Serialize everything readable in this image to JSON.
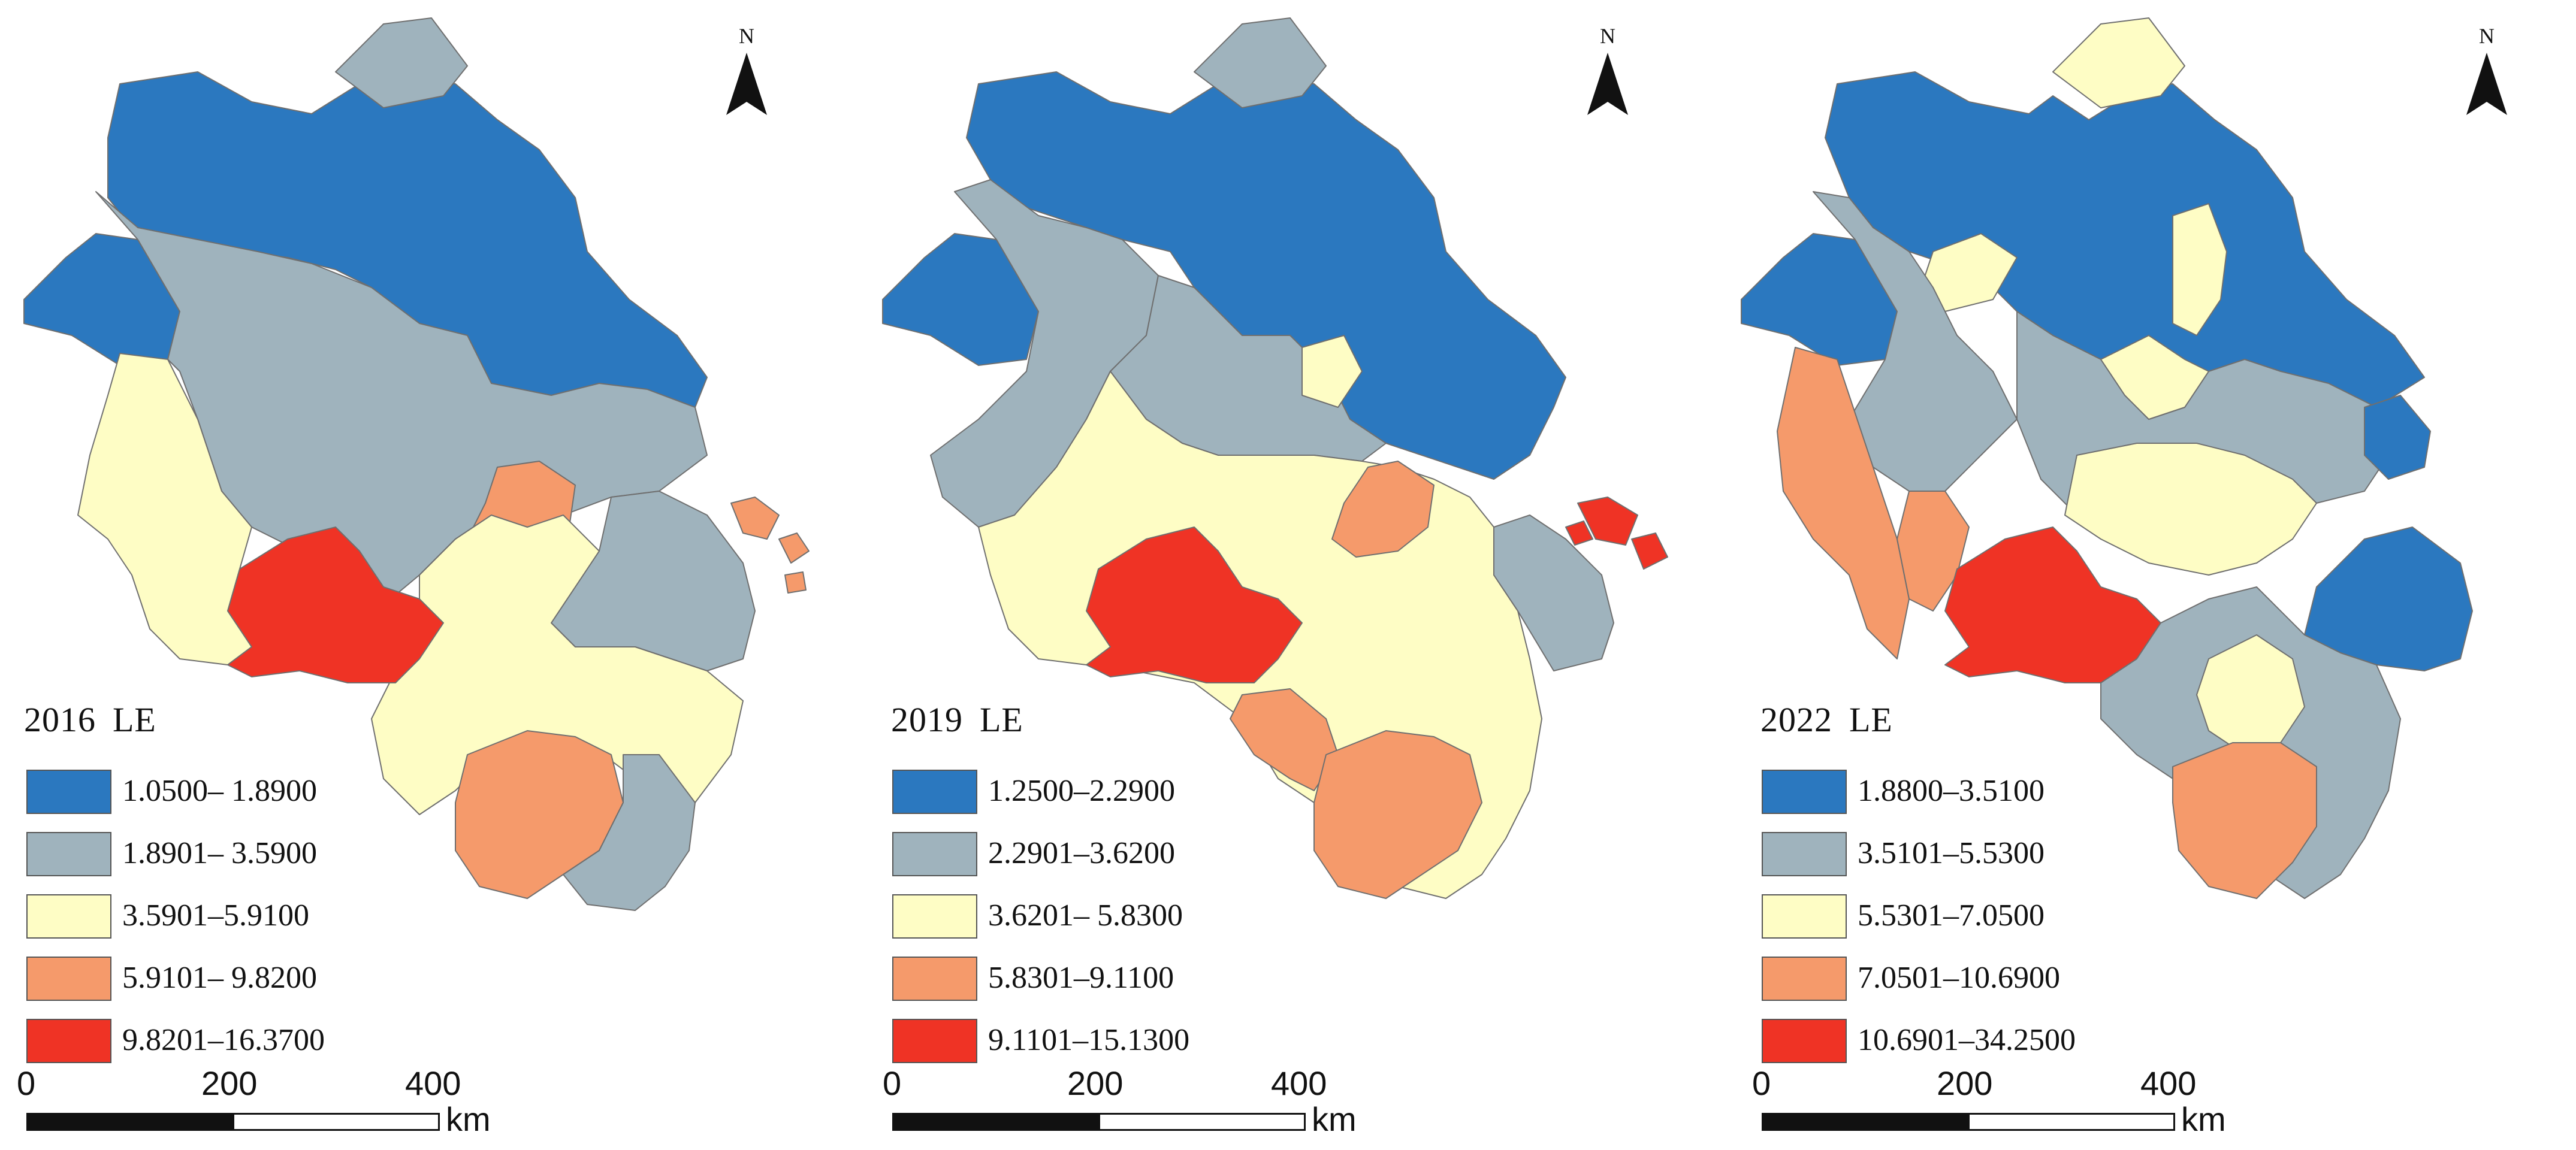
{
  "colors": {
    "class1": "#2b78bf",
    "class2": "#9fb3bd",
    "class3": "#fefdc5",
    "class4": "#f59a6b",
    "class5": "#ef3325",
    "border": "#6f6f6f",
    "text": "#111111"
  },
  "north_arrow": {
    "label": "N"
  },
  "scale": {
    "ticks": [
      "0",
      "200",
      "400"
    ],
    "unit": "km"
  },
  "panels": [
    {
      "year": "2016",
      "indicator": "LE",
      "legend": [
        {
          "label": "1.0500– 1.8900",
          "color_key": "class1"
        },
        {
          "label": "1.8901– 3.5900",
          "color_key": "class2"
        },
        {
          "label": "3.5901–5.9100",
          "color_key": "class3"
        },
        {
          "label": "5.9101– 9.8200",
          "color_key": "class4"
        },
        {
          "label": "9.8201–16.3700",
          "color_key": "class5"
        }
      ]
    },
    {
      "year": "2019",
      "indicator": "LE",
      "legend": [
        {
          "label": "1.2500–2.2900",
          "color_key": "class1"
        },
        {
          "label": "2.2901–3.6200",
          "color_key": "class2"
        },
        {
          "label": "3.6201– 5.8300",
          "color_key": "class3"
        },
        {
          "label": "5.8301–9.1100",
          "color_key": "class4"
        },
        {
          "label": "9.1101–15.1300",
          "color_key": "class5"
        }
      ]
    },
    {
      "year": "2022",
      "indicator": "LE",
      "legend": [
        {
          "label": "1.8800–3.5100",
          "color_key": "class1"
        },
        {
          "label": "3.5101–5.5300",
          "color_key": "class2"
        },
        {
          "label": "5.5301–7.0500",
          "color_key": "class3"
        },
        {
          "label": "7.0501–10.6900",
          "color_key": "class4"
        },
        {
          "label": "10.6901–34.2500",
          "color_key": "class5"
        }
      ]
    }
  ]
}
